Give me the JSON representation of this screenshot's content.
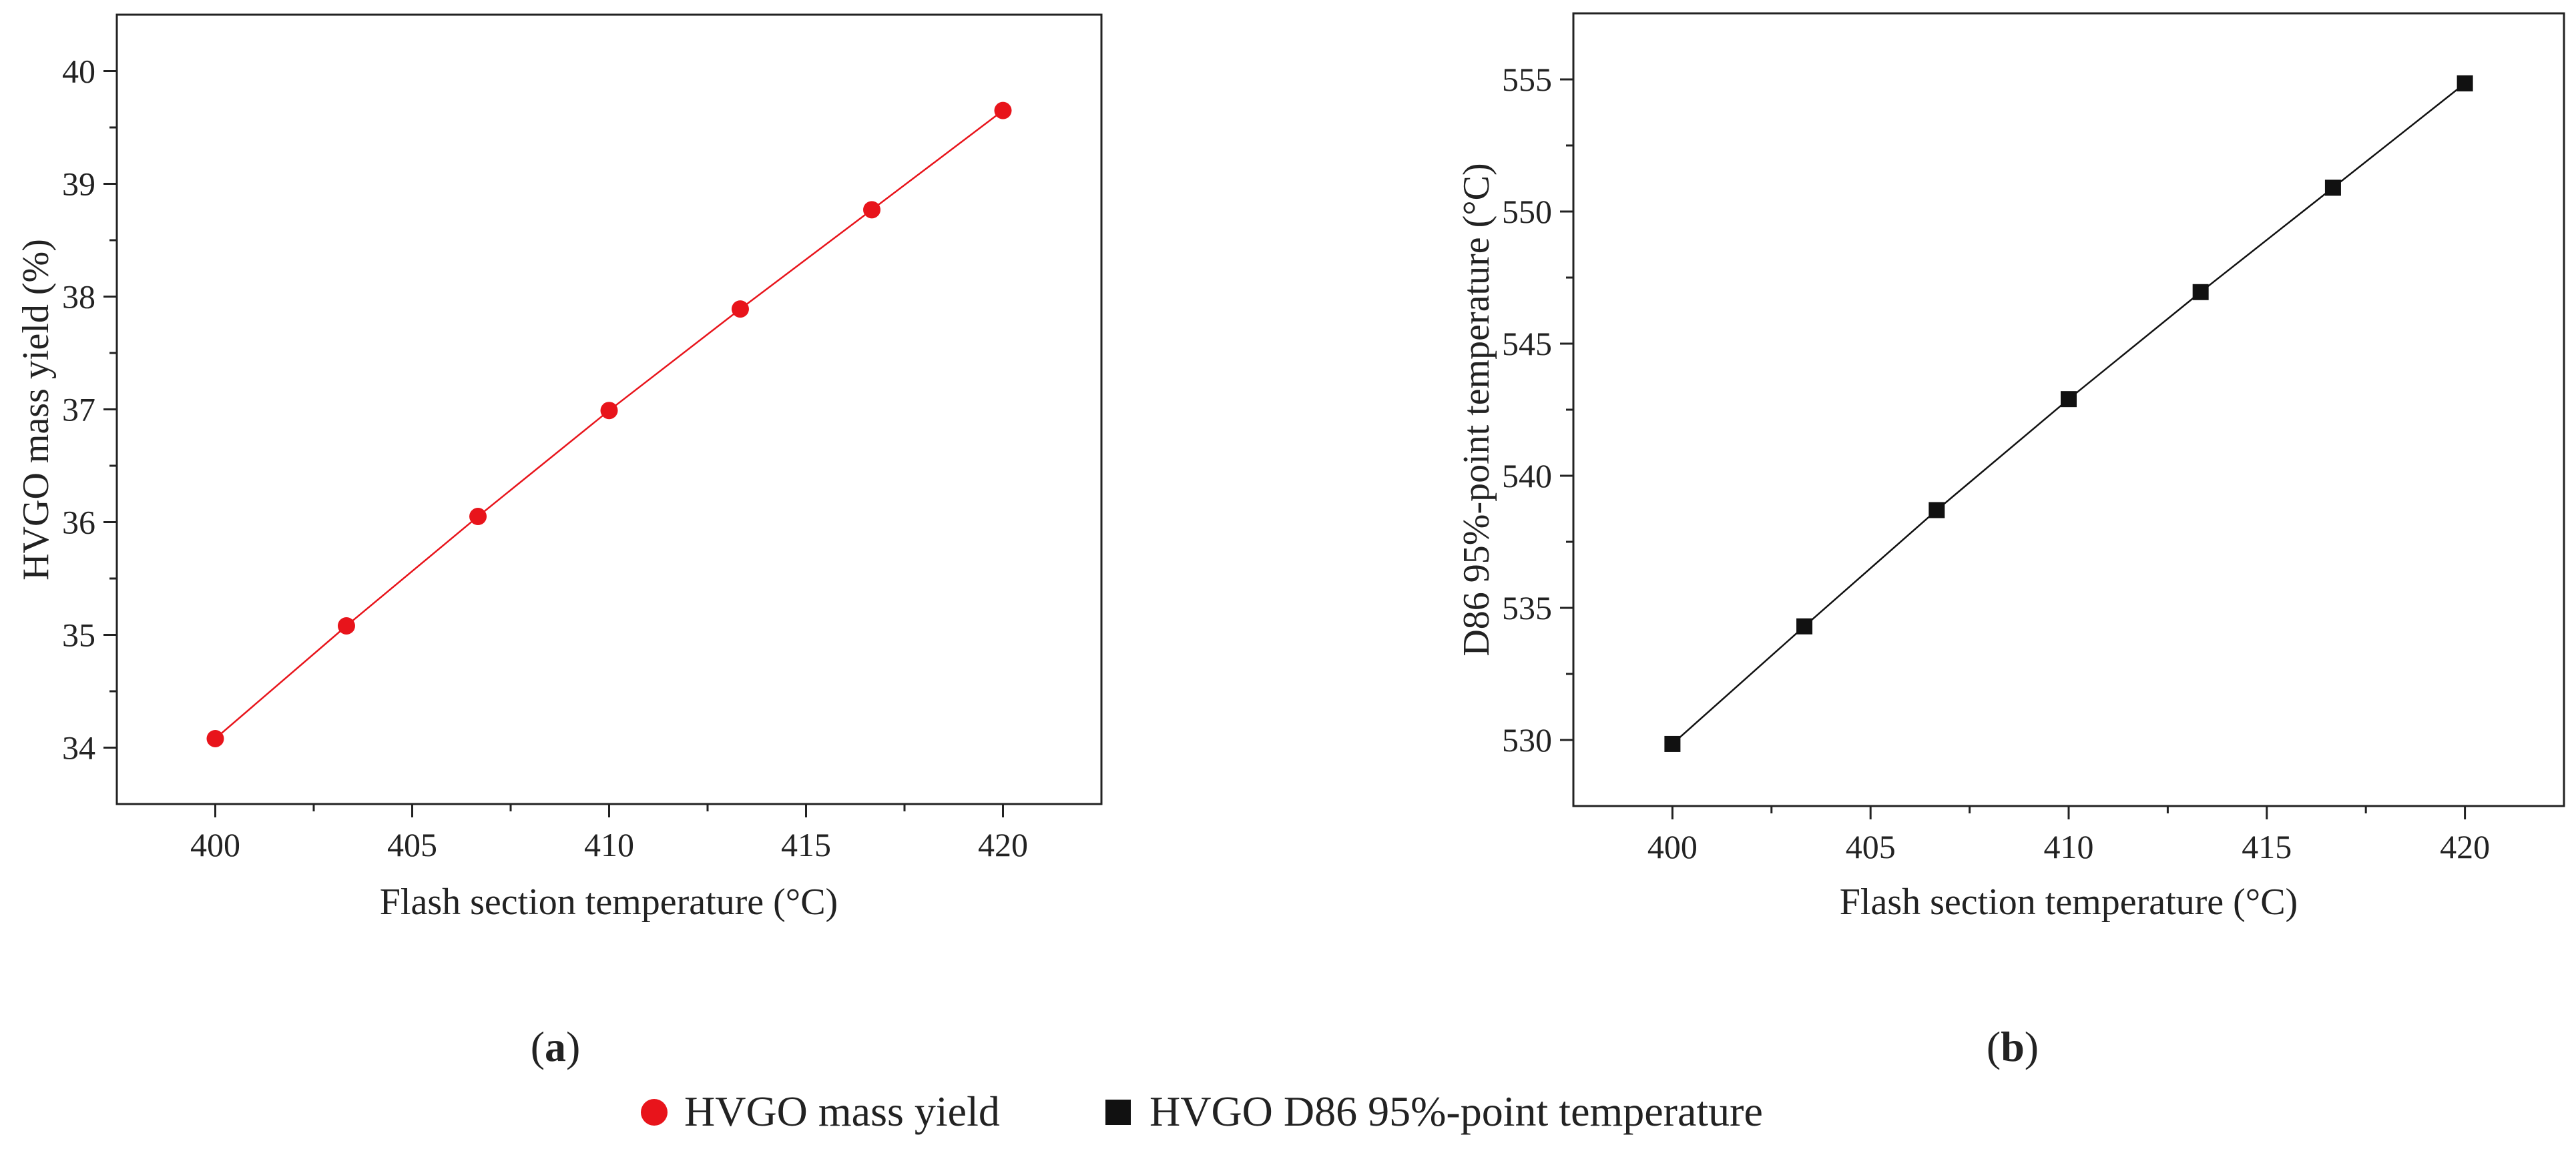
{
  "chart_data": [
    {
      "type": "line",
      "panel_label": "a",
      "xlabel": "Flash section temperature (°C)",
      "ylabel": "HVGO mass yield (%)",
      "xlim": [
        397.5,
        422.5
      ],
      "ylim": [
        33.5,
        40.5
      ],
      "xticks": [
        400,
        405,
        410,
        415,
        420
      ],
      "xticks_minor": [
        402.5,
        407.5,
        412.5,
        417.5
      ],
      "yticks": [
        34,
        35,
        36,
        37,
        38,
        39,
        40
      ],
      "yticks_minor": [
        34.5,
        35.5,
        36.5,
        37.5,
        38.5,
        39.5
      ],
      "series": [
        {
          "name": "HVGO mass yield",
          "marker": "circle",
          "color": "#e8141b",
          "x": [
            400,
            403.33,
            406.67,
            410,
            413.33,
            416.67,
            420
          ],
          "y": [
            34.08,
            35.08,
            36.05,
            36.99,
            37.89,
            38.77,
            39.65
          ]
        }
      ]
    },
    {
      "type": "line",
      "panel_label": "b",
      "xlabel": "Flash section temperature (°C)",
      "ylabel": "D86 95%-point temperature (°C)",
      "xlim": [
        397.5,
        422.5
      ],
      "ylim": [
        527.5,
        557.5
      ],
      "xticks": [
        400,
        405,
        410,
        415,
        420
      ],
      "xticks_minor": [
        402.5,
        407.5,
        412.5,
        417.5
      ],
      "yticks": [
        530,
        535,
        540,
        545,
        550,
        555
      ],
      "yticks_minor": [
        532.5,
        537.5,
        542.5,
        547.5,
        552.5
      ],
      "series": [
        {
          "name": "HVGO D86 95%-point temperature",
          "marker": "square",
          "color": "#111111",
          "x": [
            400,
            403.33,
            406.67,
            410,
            413.33,
            416.67,
            420
          ],
          "y": [
            529.85,
            534.3,
            538.7,
            542.9,
            546.95,
            550.9,
            554.85
          ]
        }
      ]
    }
  ],
  "legend": {
    "placement": "bottom-center",
    "items": [
      {
        "label": "HVGO mass yield",
        "marker": "circle",
        "color": "#e8141b"
      },
      {
        "label": "HVGO D86 95%-point temperature",
        "marker": "square",
        "color": "#111111"
      }
    ]
  }
}
